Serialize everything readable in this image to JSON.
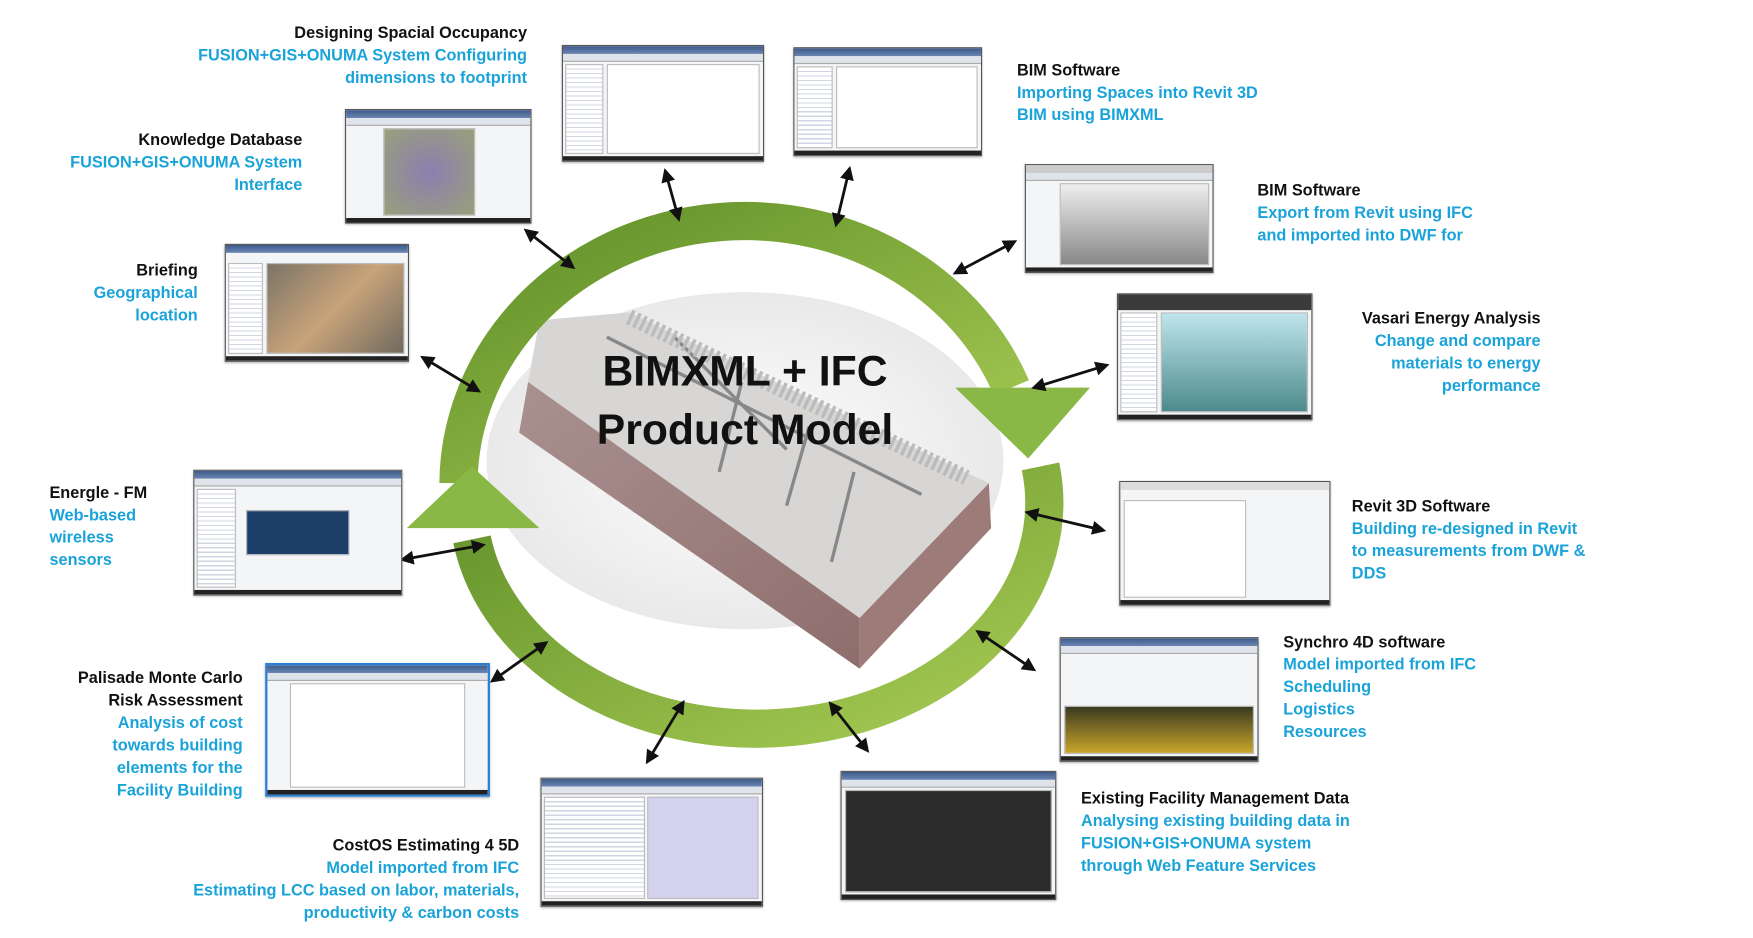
{
  "center": {
    "line1": "BIMXML + IFC",
    "line2": "Product Model"
  },
  "colors": {
    "ring_green": "#7aa83a",
    "title_text": "#111111",
    "description_text": "#1aa3d9"
  },
  "nodes": [
    {
      "title": "Designing Spacial Occupancy",
      "lines": [
        "FUSION+GIS+ONUMA System Configuring",
        "dimensions to footprint"
      ]
    },
    {
      "title": "BIM Software",
      "lines": [
        "Importing Spaces into Revit 3D",
        "BIM using BIMXML"
      ]
    },
    {
      "title": "Knowledge Database",
      "lines": [
        "FUSION+GIS+ONUMA System",
        "Interface"
      ]
    },
    {
      "title": "BIM Software",
      "lines": [
        "Export from Revit using IFC",
        "and imported into DWF for"
      ]
    },
    {
      "title": "Briefing",
      "lines": [
        "Geographical",
        "location"
      ]
    },
    {
      "title": "Vasari Energy Analysis",
      "lines": [
        "Change and compare",
        "materials to energy",
        "performance"
      ]
    },
    {
      "title": "Energle - FM",
      "lines": [
        "Web-based",
        "wireless",
        "sensors"
      ]
    },
    {
      "title": "Revit 3D Software",
      "lines": [
        "Building re-designed in Revit",
        "to measurements from DWF &",
        "DDS"
      ]
    },
    {
      "title": "Synchro 4D software",
      "lines": [
        "Model imported from IFC",
        "Scheduling",
        "Logistics",
        "Resources"
      ]
    },
    {
      "title": "Palisade Monte Carlo",
      "title2": "Risk Assessment",
      "lines": [
        "Analysis of cost",
        "towards building",
        "elements for the",
        "Facility Building"
      ]
    },
    {
      "title": "CostOS Estimating 4 5D",
      "lines": [
        "Model imported from IFC",
        "Estimating LCC based on labor, materials,",
        "productivity & carbon costs"
      ]
    },
    {
      "title": "Existing Facility Management Data",
      "lines": [
        "Analysing existing building data in",
        "FUSION+GIS+ONUMA system",
        "through Web Feature Services"
      ]
    }
  ]
}
